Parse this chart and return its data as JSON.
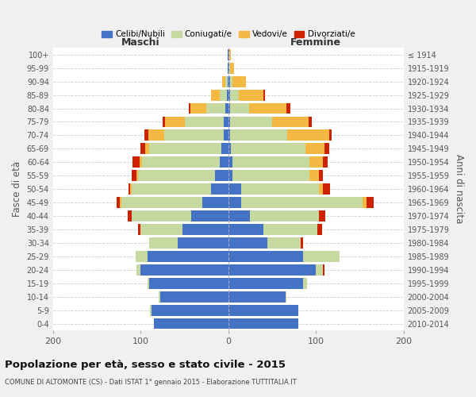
{
  "age_groups_bottom_to_top": [
    "0-4",
    "5-9",
    "10-14",
    "15-19",
    "20-24",
    "25-29",
    "30-34",
    "35-39",
    "40-44",
    "45-49",
    "50-54",
    "55-59",
    "60-64",
    "65-69",
    "70-74",
    "75-79",
    "80-84",
    "85-89",
    "90-94",
    "95-99",
    "100+"
  ],
  "birth_years_bottom_to_top": [
    "2010-2014",
    "2005-2009",
    "2000-2004",
    "1995-1999",
    "1990-1994",
    "1985-1989",
    "1980-1984",
    "1975-1979",
    "1970-1974",
    "1965-1969",
    "1960-1964",
    "1955-1959",
    "1950-1954",
    "1945-1949",
    "1940-1944",
    "1935-1939",
    "1930-1934",
    "1925-1929",
    "1920-1924",
    "1915-1919",
    "≤ 1914"
  ],
  "colors": {
    "celibi": "#4472C4",
    "coniugati": "#C6D9A0",
    "vedovi": "#F4B942",
    "divorziati": "#CC2200"
  },
  "maschi": {
    "celibi": [
      85,
      88,
      78,
      90,
      100,
      92,
      58,
      52,
      42,
      30,
      20,
      15,
      10,
      8,
      5,
      5,
      3,
      2,
      1,
      1,
      1
    ],
    "coniugati": [
      0,
      1,
      1,
      2,
      5,
      14,
      32,
      48,
      68,
      92,
      90,
      88,
      88,
      82,
      68,
      45,
      22,
      8,
      2,
      0,
      0
    ],
    "vedovi": [
      0,
      0,
      0,
      0,
      0,
      0,
      0,
      0,
      0,
      2,
      2,
      2,
      3,
      5,
      18,
      22,
      18,
      10,
      4,
      0,
      0
    ],
    "divorziati": [
      0,
      0,
      0,
      0,
      0,
      0,
      0,
      3,
      5,
      3,
      2,
      5,
      8,
      5,
      5,
      3,
      2,
      0,
      0,
      0,
      0
    ]
  },
  "femmine": {
    "celibi": [
      80,
      80,
      65,
      85,
      100,
      85,
      45,
      40,
      25,
      15,
      15,
      5,
      5,
      3,
      2,
      2,
      2,
      2,
      2,
      1,
      1
    ],
    "coniugati": [
      0,
      0,
      1,
      5,
      8,
      42,
      38,
      62,
      78,
      138,
      88,
      88,
      88,
      85,
      65,
      48,
      22,
      10,
      3,
      1,
      0
    ],
    "vedovi": [
      0,
      0,
      0,
      0,
      0,
      0,
      0,
      0,
      0,
      5,
      5,
      10,
      15,
      22,
      48,
      42,
      42,
      28,
      15,
      5,
      2
    ],
    "divorziati": [
      0,
      0,
      0,
      0,
      2,
      0,
      2,
      5,
      8,
      8,
      8,
      5,
      5,
      5,
      3,
      3,
      5,
      2,
      0,
      0,
      0
    ]
  },
  "xlim": 200,
  "title": "Popolazione per età, sesso e stato civile - 2015",
  "subtitle": "COMUNE DI ALTOMONTE (CS) - Dati ISTAT 1° gennaio 2015 - Elaborazione TUTTITALIA.IT",
  "ylabel_left": "Fasce di età",
  "ylabel_right": "Anni di nascita",
  "xlabel_maschi": "Maschi",
  "xlabel_femmine": "Femmine",
  "legend_labels": [
    "Celibi/Nubili",
    "Coniugati/e",
    "Vedovi/e",
    "Divorziati/e"
  ],
  "bg_color": "#f0f0f0",
  "plot_bg": "#ffffff"
}
